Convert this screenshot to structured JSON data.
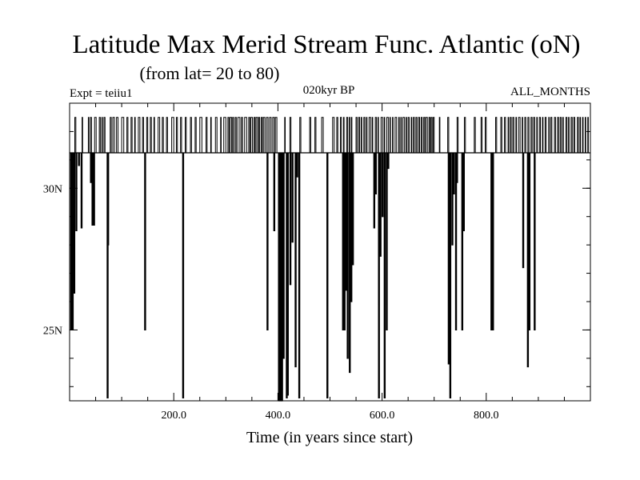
{
  "chart_data": {
    "type": "line",
    "title": "Latitude Max Merid Stream Func. Atlantic (oN)",
    "subtitle": "(from lat= 20 to 80)",
    "header_left": "Expt = teiiu1",
    "header_center": "020kyr BP",
    "header_right": "ALL_MONTHS",
    "xlabel": "Time (in years since start)",
    "ylabel": "",
    "xlim": [
      0,
      1000
    ],
    "ylim": [
      22.5,
      33.0
    ],
    "x_ticks": [
      200,
      400,
      600,
      800
    ],
    "x_tick_labels": [
      "200.0",
      "400.0",
      "600.0",
      "800.0"
    ],
    "y_ticks": [
      25,
      30
    ],
    "y_tick_labels": [
      "25N",
      "30N"
    ],
    "grid": false,
    "baseline_latitude": 31.25,
    "high_latitude": 32.5,
    "high_segments": [
      [
        10,
        12
      ],
      [
        24,
        25
      ],
      [
        36,
        37
      ],
      [
        40,
        42
      ],
      [
        48,
        51
      ],
      [
        57,
        59
      ],
      [
        62,
        63
      ],
      [
        66,
        68
      ],
      [
        78,
        80
      ],
      [
        83,
        86
      ],
      [
        90,
        93
      ],
      [
        100,
        104
      ],
      [
        110,
        112
      ],
      [
        118,
        120
      ],
      [
        125,
        126
      ],
      [
        132,
        135
      ],
      [
        140,
        142
      ],
      [
        148,
        150
      ],
      [
        155,
        157
      ],
      [
        162,
        163
      ],
      [
        170,
        173
      ],
      [
        178,
        180
      ],
      [
        186,
        188
      ],
      [
        196,
        200
      ],
      [
        205,
        207
      ],
      [
        213,
        215
      ],
      [
        222,
        224
      ],
      [
        232,
        234
      ],
      [
        241,
        243
      ],
      [
        250,
        254
      ],
      [
        262,
        264
      ],
      [
        271,
        272
      ],
      [
        280,
        283
      ],
      [
        290,
        291
      ],
      [
        296,
        300
      ],
      [
        304,
        306
      ],
      [
        308,
        311
      ],
      [
        313,
        315
      ],
      [
        318,
        320
      ],
      [
        323,
        327
      ],
      [
        330,
        332
      ],
      [
        336,
        340
      ],
      [
        344,
        346
      ],
      [
        348,
        351
      ],
      [
        354,
        356
      ],
      [
        358,
        361
      ],
      [
        363,
        365
      ],
      [
        368,
        370
      ],
      [
        372,
        375
      ],
      [
        378,
        381
      ],
      [
        384,
        387
      ],
      [
        390,
        393
      ],
      [
        395,
        398
      ],
      [
        413,
        414
      ],
      [
        423,
        425
      ],
      [
        442,
        444
      ],
      [
        461,
        463
      ],
      [
        471,
        473
      ],
      [
        484,
        487
      ],
      [
        505,
        508
      ],
      [
        513,
        515
      ],
      [
        520,
        522
      ],
      [
        526,
        527
      ],
      [
        532,
        534
      ],
      [
        537,
        538
      ],
      [
        541,
        542
      ],
      [
        550,
        552
      ],
      [
        555,
        557
      ],
      [
        560,
        561
      ],
      [
        565,
        567
      ],
      [
        570,
        571
      ],
      [
        575,
        578
      ],
      [
        581,
        582
      ],
      [
        587,
        589
      ],
      [
        592,
        593
      ],
      [
        598,
        601
      ],
      [
        604,
        605
      ],
      [
        609,
        612
      ],
      [
        615,
        616
      ],
      [
        620,
        621
      ],
      [
        625,
        628
      ],
      [
        632,
        633
      ],
      [
        636,
        637
      ],
      [
        640,
        643
      ],
      [
        646,
        647
      ],
      [
        650,
        652
      ],
      [
        656,
        657
      ],
      [
        660,
        662
      ],
      [
        665,
        667
      ],
      [
        670,
        672
      ],
      [
        675,
        677
      ],
      [
        680,
        682
      ],
      [
        684,
        687
      ],
      [
        690,
        692
      ],
      [
        694,
        696
      ],
      [
        698,
        700
      ],
      [
        710,
        711
      ],
      [
        726,
        728
      ],
      [
        744,
        746
      ],
      [
        758,
        760
      ],
      [
        777,
        779
      ],
      [
        790,
        792
      ],
      [
        798,
        800
      ],
      [
        818,
        820
      ],
      [
        828,
        830
      ],
      [
        835,
        837
      ],
      [
        842,
        843
      ],
      [
        846,
        848
      ],
      [
        851,
        853
      ],
      [
        857,
        858
      ],
      [
        862,
        865
      ],
      [
        869,
        870
      ],
      [
        874,
        876
      ],
      [
        880,
        882
      ],
      [
        886,
        888
      ],
      [
        891,
        893
      ],
      [
        897,
        898
      ],
      [
        902,
        904
      ],
      [
        908,
        909
      ],
      [
        913,
        915
      ],
      [
        920,
        921
      ],
      [
        924,
        926
      ],
      [
        931,
        933
      ],
      [
        937,
        939
      ],
      [
        942,
        944
      ],
      [
        947,
        948
      ],
      [
        953,
        955
      ],
      [
        958,
        959
      ],
      [
        963,
        965
      ],
      [
        968,
        970
      ],
      [
        975,
        977
      ],
      [
        980,
        981
      ],
      [
        985,
        986
      ],
      [
        990,
        991
      ],
      [
        995,
        996
      ]
    ],
    "drops": [
      [
        3,
        25.0
      ],
      [
        6,
        25.0
      ],
      [
        9,
        26.3
      ],
      [
        13,
        28.5
      ],
      [
        18,
        30.8
      ],
      [
        23,
        28.6
      ],
      [
        41,
        30.2
      ],
      [
        44,
        28.7
      ],
      [
        47,
        28.7
      ],
      [
        73,
        22.6
      ],
      [
        74,
        28.0
      ],
      [
        145,
        25.0
      ],
      [
        218,
        22.6
      ],
      [
        380,
        25.0
      ],
      [
        393,
        28.5
      ],
      [
        402,
        22.5
      ],
      [
        405,
        22.5
      ],
      [
        408,
        22.5
      ],
      [
        411,
        24.0
      ],
      [
        417,
        22.6
      ],
      [
        419,
        22.7
      ],
      [
        424,
        26.6
      ],
      [
        428,
        28.1
      ],
      [
        434,
        23.7
      ],
      [
        437,
        30.4
      ],
      [
        441,
        22.6
      ],
      [
        495,
        22.6
      ],
      [
        525,
        25.0
      ],
      [
        528,
        25.0
      ],
      [
        531,
        26.4
      ],
      [
        534,
        24.0
      ],
      [
        538,
        23.5
      ],
      [
        541,
        26.0
      ],
      [
        544,
        27.3
      ],
      [
        585,
        28.6
      ],
      [
        588,
        29.8
      ],
      [
        594,
        22.6
      ],
      [
        597,
        27.6
      ],
      [
        601,
        29.0
      ],
      [
        605,
        22.6
      ],
      [
        609,
        25.0
      ],
      [
        612,
        30.7
      ],
      [
        728,
        23.8
      ],
      [
        731,
        22.6
      ],
      [
        735,
        28.0
      ],
      [
        738,
        29.8
      ],
      [
        742,
        25.0
      ],
      [
        744,
        30.2
      ],
      [
        754,
        25.0
      ],
      [
        757,
        28.5
      ],
      [
        810,
        25.0
      ],
      [
        813,
        25.0
      ],
      [
        871,
        27.2
      ],
      [
        880,
        23.7
      ],
      [
        883,
        25.0
      ],
      [
        893,
        25.0
      ]
    ]
  }
}
